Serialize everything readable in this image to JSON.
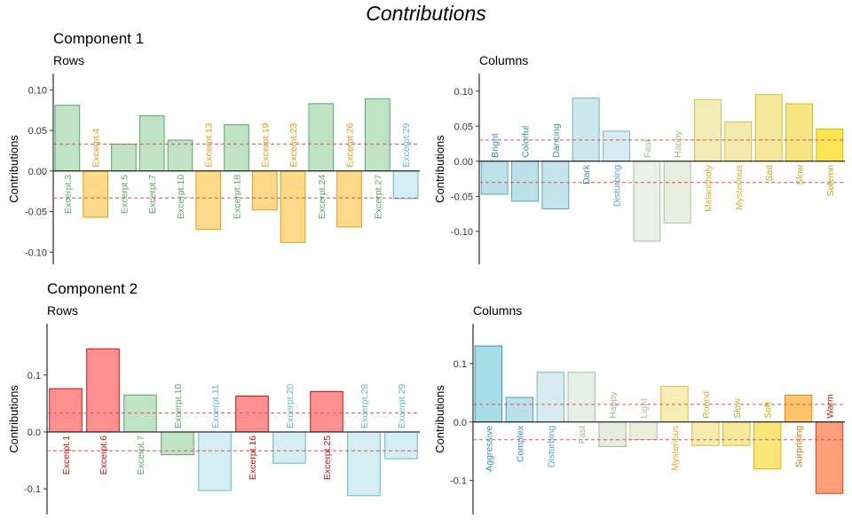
{
  "title": "Contributions",
  "components": [
    {
      "label": "Component 1"
    },
    {
      "label": "Component 2"
    }
  ],
  "colors": {
    "green_fill": "#bfe3c4",
    "green_stroke": "#5aa66a",
    "orange_fill": "#fed98a",
    "orange_stroke": "#e49a1a",
    "cyan_fill": "#d4eef4",
    "cyan_stroke": "#5fb8d0",
    "red_fill": "#ff9090",
    "red_stroke": "#d01010",
    "threshold": "#e05050"
  },
  "chart_data": [
    {
      "type": "bar",
      "component": "Component 1",
      "subtitle": "Rows",
      "ylabel": "Contributions",
      "ylim": [
        -0.115,
        0.12
      ],
      "yticks": [
        -0.1,
        -0.05,
        0.0,
        0.05,
        0.1
      ],
      "threshold": 0.0333,
      "categories": [
        "Excerpt.3",
        "Excerpt.4",
        "Excerpt.5",
        "Excerpt.7",
        "Excerpt.10",
        "Excerpt.13",
        "Excerpt.18",
        "Excerpt.19",
        "Excerpt.23",
        "Excerpt.24",
        "Excerpt.26",
        "Excerpt.27",
        "Excerpt.29"
      ],
      "values": [
        0.081,
        -0.057,
        0.033,
        0.068,
        0.038,
        -0.072,
        0.057,
        -0.048,
        -0.088,
        0.083,
        -0.069,
        0.089,
        -0.034
      ],
      "colors": [
        "#bfe3c4",
        "#fed98a",
        "#bfe3c4",
        "#bfe3c4",
        "#bfe3c4",
        "#fed98a",
        "#bfe3c4",
        "#fed98a",
        "#fed98a",
        "#bfe3c4",
        "#fed98a",
        "#bfe3c4",
        "#d4eef4"
      ],
      "strokes": [
        "#5aa66a",
        "#e49a1a",
        "#5aa66a",
        "#5aa66a",
        "#5aa66a",
        "#e49a1a",
        "#5aa66a",
        "#e49a1a",
        "#e49a1a",
        "#5aa66a",
        "#e49a1a",
        "#5aa66a",
        "#5fb8d0"
      ]
    },
    {
      "type": "bar",
      "component": "Component 1",
      "subtitle": "Columns",
      "ylabel": "Contributions",
      "ylim": [
        -0.147,
        0.125
      ],
      "yticks": [
        -0.1,
        -0.05,
        0.0,
        0.05,
        0.1
      ],
      "threshold": 0.0303,
      "categories": [
        "Bright",
        "Colorful",
        "Dancing",
        "Dark",
        "Disturbing",
        "Fast",
        "Happy",
        "Melancholy",
        "Mysterious",
        "Sad",
        "Slow",
        "Solemn"
      ],
      "values": [
        -0.047,
        -0.057,
        -0.068,
        0.09,
        0.043,
        -0.114,
        -0.088,
        0.088,
        0.056,
        0.095,
        0.082,
        0.046
      ],
      "colors": [
        "#bde1ea",
        "#bde1ea",
        "#c4e4ec",
        "#cce8ef",
        "#d6ecf1",
        "#e8f0e8",
        "#e8ede0",
        "#f3ecb8",
        "#f3eab0",
        "#f5e89c",
        "#f7e583",
        "#fce553"
      ],
      "strokes": [
        "#5aa8bf",
        "#5aa8bf",
        "#5aa8bf",
        "#6ab0c4",
        "#7ab8c8",
        "#a8c4a0",
        "#b0c098",
        "#d4c050",
        "#d4bc40",
        "#d8b830",
        "#dcb420",
        "#e2b400"
      ],
      "label_colors": [
        "#3a8fb0",
        "#3a8fb0",
        "#3a8fb0",
        "#3a8fb0",
        "#5aa6c0",
        "#a0b898",
        "#a8b890",
        "#d4b030",
        "#d4b030",
        "#d4a820",
        "#d4a820",
        "#d4a000"
      ]
    },
    {
      "type": "bar",
      "component": "Component 2",
      "subtitle": "Rows",
      "ylabel": "Contributions",
      "ylim": [
        -0.145,
        0.19
      ],
      "yticks": [
        -0.1,
        0.0,
        0.1
      ],
      "threshold": 0.0333,
      "categories": [
        "Excerpt.1",
        "Excerpt.6",
        "Excerpt.7",
        "Excerpt.10",
        "Excerpt.11",
        "Excerpt.16",
        "Excerpt.20",
        "Excerpt.25",
        "Excerpt.28",
        "Excerpt.29"
      ],
      "values": [
        0.076,
        0.146,
        0.065,
        -0.04,
        -0.103,
        0.063,
        -0.055,
        0.071,
        -0.112,
        -0.047
      ],
      "colors": [
        "#ff9090",
        "#ff9090",
        "#bfe3c4",
        "#bfe3c4",
        "#d4eef4",
        "#ff9090",
        "#d4eef4",
        "#ff9090",
        "#d4eef4",
        "#d4eef4"
      ],
      "strokes": [
        "#d01010",
        "#d01010",
        "#5aa66a",
        "#5aa66a",
        "#5fb8d0",
        "#d01010",
        "#5fb8d0",
        "#d01010",
        "#5fb8d0",
        "#5fb8d0"
      ]
    },
    {
      "type": "bar",
      "component": "Component 2",
      "subtitle": "Columns",
      "ylabel": "Contributions",
      "ylim": [
        -0.158,
        0.168
      ],
      "yticks": [
        -0.1,
        0.0,
        0.1
      ],
      "threshold": 0.0303,
      "categories": [
        "Aggressive",
        "Complex",
        "Disturbing",
        "Fast",
        "Happy",
        "Light",
        "Mysterious",
        "Round",
        "Slow",
        "Soft",
        "Surprising",
        "Warm"
      ],
      "values": [
        0.13,
        0.042,
        0.085,
        0.085,
        -0.042,
        -0.03,
        0.061,
        -0.04,
        -0.04,
        -0.08,
        0.046,
        -0.122
      ],
      "colors": [
        "#a8dce6",
        "#bde1ea",
        "#d6ecf1",
        "#e4efe6",
        "#e6ede0",
        "#ecefdc",
        "#f6eeb4",
        "#f8ebb0",
        "#f8ea9c",
        "#fce67a",
        "#ffc46a",
        "#ff9f7a"
      ],
      "strokes": [
        "#3a9ab5",
        "#4a9fb8",
        "#7ab8c8",
        "#a8c4a8",
        "#a8b898",
        "#c0c4a0",
        "#d6bc40",
        "#d8ba40",
        "#dab830",
        "#e0b400",
        "#d88e20",
        "#d04020"
      ],
      "label_colors": [
        "#3a8fb0",
        "#3a8fb0",
        "#5aa6c0",
        "#a0b898",
        "#a8b890",
        "#b4bc90",
        "#d4b030",
        "#d4b030",
        "#d4a820",
        "#d4a800",
        "#cc7a00",
        "#c02000"
      ]
    }
  ]
}
